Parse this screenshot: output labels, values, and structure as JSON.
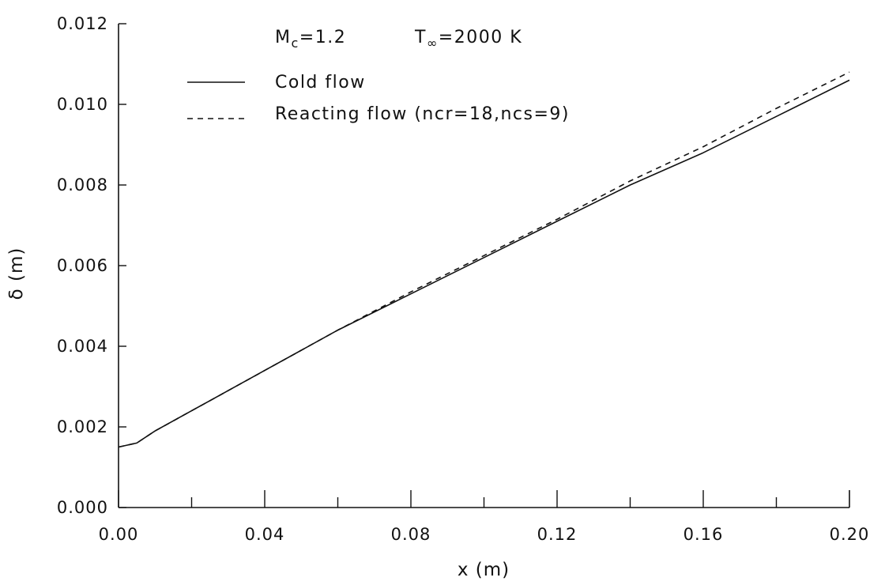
{
  "chart_data": {
    "type": "line",
    "xlabel": "x (m)",
    "ylabel": "δ (m)",
    "xlim": [
      0.0,
      0.2
    ],
    "ylim": [
      0.0,
      0.012
    ],
    "xticks": [
      "0.00",
      "0.04",
      "0.08",
      "0.12",
      "0.16",
      "0.20"
    ],
    "yticks": [
      "0.000",
      "0.002",
      "0.004",
      "0.006",
      "0.008",
      "0.010",
      "0.012"
    ],
    "x_minor_step": 0.02,
    "grid": false,
    "legend_position": "top-center",
    "annotation": {
      "mach_base": "M",
      "mach_sub": "c",
      "mach_value": "=1.2",
      "temp_base": "T",
      "temp_sub": "∞",
      "temp_value": "=2000 K"
    },
    "series": [
      {
        "name": "Cold flow",
        "style": "solid",
        "x": [
          0.0,
          0.005,
          0.01,
          0.02,
          0.03,
          0.04,
          0.06,
          0.08,
          0.1,
          0.12,
          0.14,
          0.16,
          0.18,
          0.2
        ],
        "y": [
          0.0015,
          0.0016,
          0.0019,
          0.0024,
          0.0029,
          0.0034,
          0.0044,
          0.0053,
          0.0062,
          0.0071,
          0.008,
          0.0088,
          0.0097,
          0.0106
        ]
      },
      {
        "name": "Reacting flow (ncr=18,ncs=9)",
        "style": "dashed",
        "x": [
          0.0,
          0.005,
          0.01,
          0.02,
          0.03,
          0.04,
          0.06,
          0.08,
          0.1,
          0.12,
          0.14,
          0.16,
          0.18,
          0.2
        ],
        "y": [
          0.0015,
          0.0016,
          0.0019,
          0.0024,
          0.0029,
          0.0034,
          0.0044,
          0.00535,
          0.00625,
          0.00715,
          0.0081,
          0.00895,
          0.0099,
          0.0108
        ]
      }
    ]
  }
}
